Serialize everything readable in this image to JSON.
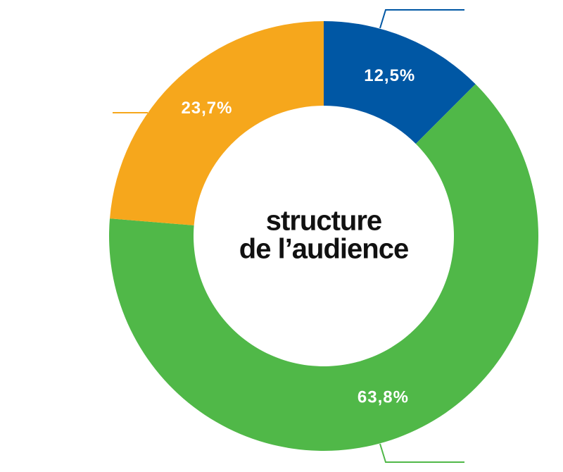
{
  "chart_data": {
    "type": "donut",
    "center_text": [
      "structure",
      "de l’audience"
    ],
    "values": [
      12.5,
      63.8,
      23.7
    ],
    "value_labels": [
      "12,5%",
      "63,8%",
      "23,7%"
    ],
    "colors": [
      "#0057a4",
      "#50b848",
      "#f6a71c"
    ]
  }
}
